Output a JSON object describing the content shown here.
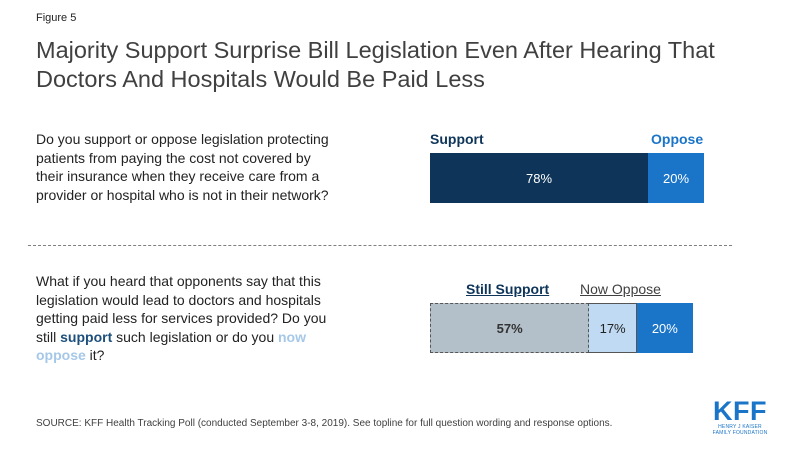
{
  "figure_label": "Figure 5",
  "title": "Majority Support Surprise Bill Legislation Even After Hearing That Doctors And Hospitals Would Be Paid Less",
  "question1": "Do you support or oppose legislation protecting patients from paying the cost not covered by their insurance when they receive care from a provider or hospital who is not in their network?",
  "question2": {
    "part1": "What if you heard that opponents say that this legislation would lead to doctors and hospitals getting paid less for services provided? Do you still ",
    "kw_support": "support",
    "part2": " such legislation or do you ",
    "kw_oppose": "now oppose",
    "part3": " it?"
  },
  "source": "SOURCE: KFF Health Tracking Poll (conducted September 3-8, 2019). See topline for full question wording and response options.",
  "logo": {
    "text": "KFF",
    "sub_line1": "HENRY J KAISER",
    "sub_line2": "FAMILY FOUNDATION"
  },
  "colors": {
    "support": "#0e3559",
    "oppose": "#1a75c9",
    "still_support": "#b3bfc9",
    "now_oppose": "#bfdaf2"
  },
  "chart_data": [
    {
      "type": "bar",
      "orientation": "horizontal-stacked",
      "series": [
        {
          "name": "Support",
          "value": 78,
          "label": "78%"
        },
        {
          "name": "Oppose",
          "value": 20,
          "label": "20%"
        }
      ]
    },
    {
      "type": "bar",
      "orientation": "horizontal-stacked",
      "series": [
        {
          "name": "Still Support",
          "value": 57,
          "label": "57%"
        },
        {
          "name": "Now Oppose",
          "value": 17,
          "label": "17%"
        },
        {
          "name": "",
          "value": 20,
          "label": "20%"
        }
      ]
    }
  ]
}
